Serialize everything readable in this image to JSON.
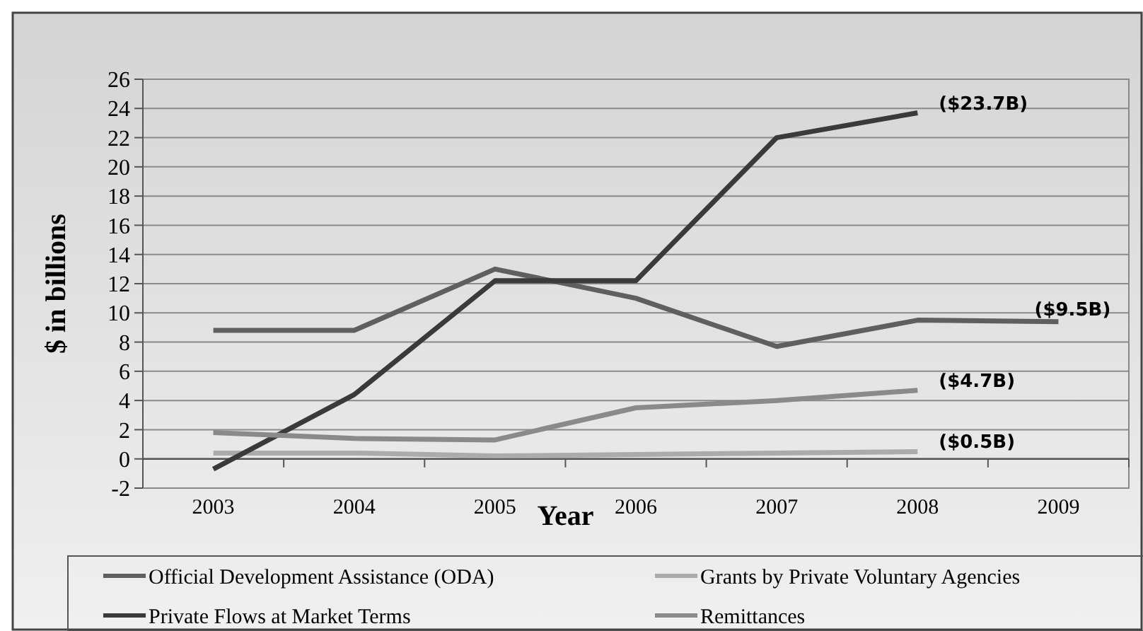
{
  "chart_data": {
    "type": "line",
    "xlabel": "Year",
    "ylabel": "$ in billions",
    "categories": [
      "2003",
      "2004",
      "2005",
      "2006",
      "2007",
      "2008",
      "2009"
    ],
    "series": [
      {
        "name": "Official Development Assistance (ODA)",
        "color": "#5f5f5f",
        "values": [
          8.8,
          8.8,
          13.0,
          11.0,
          7.7,
          9.5,
          9.4
        ]
      },
      {
        "name": "Grants by Private Voluntary Agencies",
        "color": "#ababab",
        "values": [
          0.4,
          0.4,
          0.2,
          0.3,
          0.4,
          0.5,
          null
        ]
      },
      {
        "name": "Private Flows at Market Terms",
        "color": "#3a3a3a",
        "values": [
          -0.7,
          4.4,
          12.2,
          12.2,
          22.0,
          23.7,
          null
        ]
      },
      {
        "name": "Remittances",
        "color": "#8a8a8a",
        "values": [
          1.8,
          1.4,
          1.3,
          3.5,
          4.0,
          4.7,
          null
        ]
      }
    ],
    "ylim": [
      -2,
      26
    ],
    "yticks": [
      -2,
      0,
      2,
      4,
      6,
      8,
      10,
      12,
      14,
      16,
      18,
      20,
      22,
      24,
      26
    ],
    "grid": "y",
    "legend": "bottom",
    "marker": "none",
    "line_style": "solid",
    "annotations": [
      {
        "text": "($23.7B)",
        "x": "2008",
        "y": 23.7
      },
      {
        "text": "($9.5B)",
        "x": "2009",
        "y": 9.4
      },
      {
        "text": "($4.7B)",
        "x": "2008",
        "y": 4.7
      },
      {
        "text": "($0.5B)",
        "x": "2008",
        "y": 0.5
      }
    ]
  }
}
